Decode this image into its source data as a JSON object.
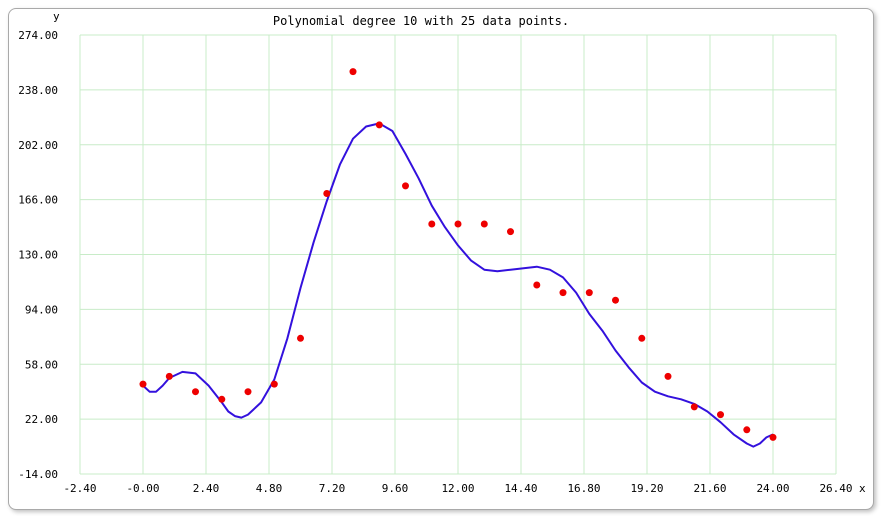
{
  "chart_data": {
    "type": "scatter",
    "title": "Polynomial degree 10 with 25 data points.",
    "xlabel": "x",
    "ylabel": "y",
    "xlim": [
      -2.4,
      26.4
    ],
    "ylim": [
      -14,
      274
    ],
    "grid": true,
    "x_ticks": [
      "-2.40",
      "-0.00",
      "2.40",
      "4.80",
      "7.20",
      "9.60",
      "12.00",
      "14.40",
      "16.80",
      "19.20",
      "21.60",
      "24.00",
      "26.40"
    ],
    "y_ticks": [
      "274.00",
      "238.00",
      "202.00",
      "166.00",
      "130.00",
      "94.00",
      "58.00",
      "22.00",
      "-14.00"
    ],
    "colors": {
      "points": "#ee0000",
      "curve": "#3311dd",
      "grid": "#c8ecc8"
    },
    "series": [
      {
        "type": "scatter",
        "x": [
          0,
          1,
          2,
          3,
          4,
          5,
          6,
          7,
          8,
          9,
          10,
          11,
          12,
          13,
          14,
          15,
          16,
          17,
          18,
          19,
          20,
          21,
          22,
          23,
          24
        ],
        "y": [
          45,
          50,
          40,
          35,
          40,
          45,
          75,
          170,
          250,
          215,
          175,
          150,
          150,
          150,
          145,
          110,
          105,
          105,
          100,
          75,
          50,
          30,
          25,
          15,
          10
        ]
      },
      {
        "type": "line",
        "x": [
          0,
          0.25,
          0.5,
          0.75,
          1,
          1.5,
          2,
          2.5,
          3,
          3.25,
          3.5,
          3.75,
          4,
          4.5,
          5,
          5.5,
          6,
          6.5,
          7,
          7.5,
          8,
          8.5,
          9,
          9.5,
          10,
          10.5,
          11,
          11.5,
          12,
          12.5,
          13,
          13.5,
          14,
          14.5,
          15,
          15.5,
          16,
          16.5,
          17,
          17.5,
          18,
          18.5,
          19,
          19.5,
          20,
          20.5,
          21,
          21.5,
          22,
          22.5,
          23,
          23.25,
          23.5,
          23.75,
          24
        ],
        "y": [
          44,
          40,
          40,
          44,
          49,
          53,
          52,
          44,
          33,
          27,
          24,
          23,
          25,
          33,
          48,
          75,
          108,
          138,
          165,
          189,
          206,
          214,
          216,
          211,
          196,
          180,
          162,
          148,
          136,
          126,
          120,
          119,
          120,
          121,
          122,
          120,
          115,
          105,
          91,
          80,
          67,
          56,
          46,
          40,
          37,
          35,
          32,
          27,
          20,
          12,
          6,
          4,
          6,
          10,
          12
        ]
      }
    ]
  }
}
